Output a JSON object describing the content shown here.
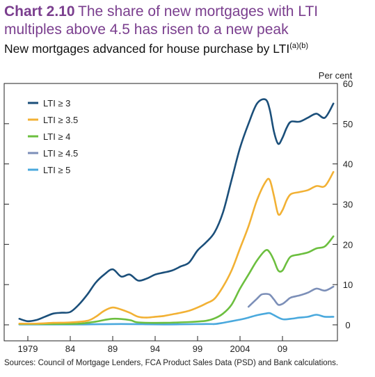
{
  "header": {
    "chart_number": "Chart 2.10",
    "title": "The share of new mortgages with LTI multiples above 4.5 has risen to a new peak",
    "subtitle": "New mortgages advanced for house purchase by LTI",
    "subtitle_footnote": "(a)(b)"
  },
  "footer": {
    "sources": "Sources:  Council of Mortgage Lenders, FCA Product Sales Data (PSD) and Bank calculations."
  },
  "chart_data": {
    "type": "line",
    "title": "New mortgages advanced for house purchase by LTI",
    "y_unit_label": "Per cent",
    "ylim": [
      0,
      60
    ],
    "y_ticks": [
      0,
      10,
      20,
      30,
      40,
      50,
      60
    ],
    "xlim": [
      1978,
      2016
    ],
    "x_ticks": [
      1979,
      1984,
      1989,
      1994,
      1999,
      2004,
      2009
    ],
    "x_tick_labels": [
      "1979",
      "84",
      "89",
      "94",
      "99",
      "2004",
      "09"
    ],
    "grid": false,
    "legend_position": "top-left",
    "series": [
      {
        "name": "LTI ≥ 3",
        "color": "#1b4f7a",
        "x": [
          1978,
          1979,
          1980,
          1981,
          1982,
          1983,
          1984,
          1985,
          1986,
          1987,
          1988,
          1989,
          1990,
          1991,
          1992,
          1993,
          1994,
          1995,
          1996,
          1997,
          1998,
          1999,
          2000,
          2001,
          2002,
          2003,
          2004,
          2005,
          2006,
          2007,
          2007.5,
          2008,
          2008.5,
          2009,
          2009.5,
          2010,
          2011,
          2012,
          2013,
          2014,
          2015
        ],
        "y": [
          1.5,
          0.9,
          1.2,
          2.0,
          2.8,
          3.0,
          3.2,
          5.0,
          7.5,
          10.5,
          12.5,
          13.8,
          12.0,
          12.5,
          11.0,
          11.5,
          12.5,
          13.0,
          13.5,
          14.5,
          15.5,
          18.5,
          20.5,
          23.0,
          28.0,
          36.0,
          44.0,
          50.0,
          55.0,
          56.0,
          53.5,
          48.0,
          45.0,
          46.5,
          49.0,
          50.5,
          50.5,
          51.5,
          52.5,
          51.5,
          55.0
        ]
      },
      {
        "name": "LTI ≥ 3.5",
        "color": "#f2b134",
        "x": [
          1978,
          1980,
          1982,
          1984,
          1986,
          1987,
          1988,
          1989,
          1990,
          1991,
          1992,
          1993,
          1994,
          1995,
          1996,
          1997,
          1998,
          1999,
          2000,
          2001,
          2002,
          2003,
          2004,
          2005,
          2006,
          2007,
          2007.5,
          2008,
          2008.5,
          2009,
          2009.5,
          2010,
          2011,
          2012,
          2013,
          2014,
          2015
        ],
        "y": [
          0.3,
          0.3,
          0.5,
          0.6,
          1.0,
          2.0,
          3.5,
          4.3,
          3.8,
          3.0,
          2.0,
          1.8,
          2.0,
          2.2,
          2.6,
          3.0,
          3.5,
          4.3,
          5.3,
          6.5,
          9.5,
          13.5,
          19.0,
          24.5,
          31.0,
          35.5,
          36.0,
          32.0,
          27.5,
          28.5,
          31.0,
          32.5,
          33.0,
          33.5,
          34.5,
          34.5,
          38.0
        ]
      },
      {
        "name": "LTI ≥ 4",
        "color": "#6cbf3f",
        "x": [
          1978,
          1982,
          1985,
          1987,
          1989,
          1991,
          1992,
          1995,
          1998,
          2000,
          2001,
          2002,
          2003,
          2004,
          2005,
          2006,
          2007,
          2007.5,
          2008,
          2008.5,
          2009,
          2009.5,
          2010,
          2011,
          2012,
          2013,
          2014,
          2015
        ],
        "y": [
          0.2,
          0.2,
          0.3,
          0.8,
          1.5,
          1.2,
          0.6,
          0.5,
          0.7,
          1.0,
          1.6,
          2.8,
          5.0,
          9.0,
          12.5,
          16.0,
          18.5,
          18.0,
          16.0,
          13.5,
          13.5,
          15.5,
          17.0,
          17.5,
          18.0,
          19.0,
          19.5,
          22.0
        ]
      },
      {
        "name": "LTI ≥ 4.5",
        "color": "#7c8fb8",
        "x": [
          2005,
          2006,
          2006.5,
          2007,
          2007.5,
          2008,
          2008.5,
          2009,
          2009.5,
          2010,
          2011,
          2012,
          2013,
          2014,
          2015
        ],
        "y": [
          4.5,
          6.5,
          7.5,
          7.7,
          7.5,
          6.3,
          5.0,
          5.2,
          6.0,
          6.8,
          7.3,
          8.0,
          9.0,
          8.5,
          9.5
        ]
      },
      {
        "name": "LTI ≥ 5",
        "color": "#4aa9dd",
        "x": [
          1978,
          1985,
          1990,
          1995,
          2000,
          2001,
          2002,
          2003,
          2004,
          2005,
          2006,
          2007,
          2007.5,
          2008,
          2009,
          2010,
          2011,
          2012,
          2013,
          2014,
          2015
        ],
        "y": [
          0.1,
          0.1,
          0.2,
          0.1,
          0.2,
          0.2,
          0.5,
          0.9,
          1.3,
          1.8,
          2.4,
          2.8,
          2.9,
          2.4,
          1.4,
          1.5,
          1.8,
          2.0,
          2.5,
          2.0,
          2.0
        ]
      }
    ]
  }
}
